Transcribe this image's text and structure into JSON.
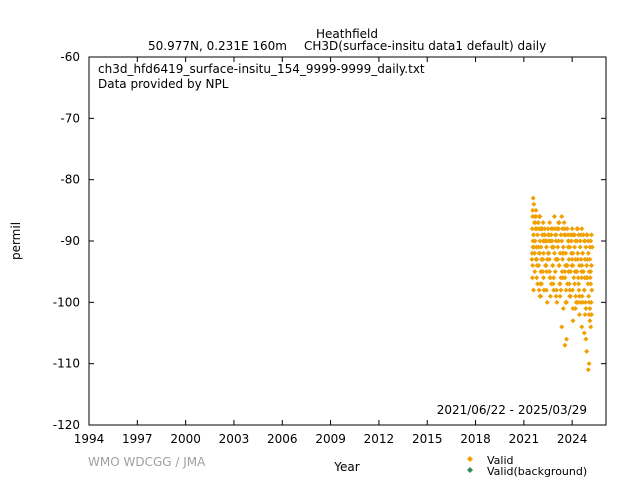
{
  "chart_data": {
    "type": "scatter",
    "title": "Heathfield",
    "subtitle_left": "50.977N, 0.231E 160m",
    "subtitle_right": "CH3D(surface-insitu data1 default) daily",
    "file_label": "ch3d_hfd6419_surface-insitu_154_9999-9999_daily.txt",
    "provider_label": "Data provided by NPL",
    "date_range": "2021/06/22 - 2025/03/29",
    "credit": "WMO WDCGG / JMA",
    "xlabel": "Year",
    "ylabel": "permil",
    "xlim": [
      1994,
      2026.1
    ],
    "ylim": [
      -120,
      -60
    ],
    "x_ticks": [
      "1994",
      "1997",
      "2000",
      "2003",
      "2006",
      "2009",
      "2012",
      "2015",
      "2018",
      "2021",
      "2024"
    ],
    "y_ticks": [
      "-60",
      "-70",
      "-80",
      "-90",
      "-100",
      "-110",
      "-120"
    ],
    "grid": false,
    "legend_position": "bottom-right",
    "series": [
      {
        "name": "Valid",
        "color": "#f0a000",
        "marker": "diamond",
        "x": [
          2021.5,
          2021.52,
          2021.55,
          2021.57,
          2021.6,
          2021.62,
          2021.65,
          2021.67,
          2021.7,
          2021.72,
          2021.75,
          2021.78,
          2021.8,
          2021.85,
          2021.88,
          2021.92,
          2021.95,
          2022.0,
          2022.03,
          2022.06,
          2022.1,
          2022.14,
          2022.18,
          2022.22,
          2022.26,
          2022.3,
          2022.35,
          2022.4,
          2022.45,
          2022.5,
          2022.55,
          2022.6,
          2022.65,
          2022.7,
          2022.75,
          2022.8,
          2022.85,
          2022.9,
          2022.95,
          2023.0,
          2023.05,
          2023.1,
          2023.15,
          2023.2,
          2023.25,
          2023.3,
          2023.35,
          2023.4,
          2023.45,
          2023.5,
          2023.55,
          2023.6,
          2023.65,
          2023.7,
          2023.75,
          2023.8,
          2023.85,
          2023.9,
          2023.95,
          2024.0,
          2024.05,
          2024.1,
          2024.15,
          2024.2,
          2024.25,
          2024.3,
          2024.35,
          2024.4,
          2024.45,
          2024.5,
          2024.55,
          2024.6,
          2024.65,
          2024.7,
          2024.75,
          2024.8,
          2024.85,
          2024.9,
          2024.95,
          2025.0,
          2025.05,
          2025.1,
          2025.15,
          2025.2,
          2025.24,
          2021.55,
          2021.62,
          2021.7,
          2021.8,
          2021.9,
          2022.0,
          2022.1,
          2022.2,
          2022.3,
          2022.4,
          2022.5,
          2022.6,
          2022.7,
          2022.8,
          2022.9,
          2023.0,
          2023.1,
          2023.2,
          2023.3,
          2023.4,
          2023.5,
          2023.6,
          2023.7,
          2023.8,
          2023.9,
          2024.0,
          2024.1,
          2024.2,
          2024.3,
          2024.4,
          2024.5,
          2024.6,
          2024.7,
          2024.8,
          2024.9,
          2025.0,
          2025.1,
          2025.2,
          2021.58,
          2021.75,
          2021.95,
          2022.15,
          2022.35,
          2022.55,
          2022.75,
          2022.95,
          2023.15,
          2023.35,
          2023.55,
          2023.75,
          2023.95,
          2024.15,
          2024.35,
          2024.55,
          2024.75,
          2024.95,
          2025.15,
          2021.53,
          2021.68,
          2021.82,
          2022.02,
          2022.22,
          2022.42,
          2022.62,
          2022.82,
          2023.02,
          2023.22,
          2023.42,
          2023.62,
          2023.82,
          2024.02,
          2024.22,
          2024.42,
          2024.62,
          2024.82,
          2025.02,
          2025.22,
          2021.6,
          2021.85,
          2022.05,
          2022.25,
          2022.45,
          2022.65,
          2022.85,
          2023.05,
          2023.25,
          2023.45,
          2023.65,
          2023.85,
          2024.05,
          2024.25,
          2024.45,
          2024.65,
          2024.85,
          2025.05,
          2025.18,
          2021.57,
          2021.66,
          2021.78,
          2021.98,
          2022.18,
          2022.38,
          2022.58,
          2022.78,
          2022.98,
          2023.18,
          2023.38,
          2023.58,
          2023.78,
          2023.98,
          2024.18,
          2024.38,
          2024.58,
          2024.78,
          2024.98,
          2025.12,
          2021.7,
          2021.95,
          2022.25,
          2022.55,
          2022.85,
          2023.15,
          2023.45,
          2023.75,
          2024.05,
          2024.35,
          2024.65,
          2024.95,
          2025.2,
          2021.55,
          2021.8,
          2022.1,
          2022.4,
          2022.7,
          2023.0,
          2023.3,
          2023.6,
          2023.9,
          2024.2,
          2024.5,
          2024.8,
          2025.1,
          2021.6,
          2021.9,
          2022.2,
          2022.5,
          2022.8,
          2023.1,
          2023.4,
          2023.7,
          2024.0,
          2024.3,
          2024.6,
          2024.9,
          2025.15,
          2021.52,
          2021.75,
          2022.05,
          2022.35,
          2022.65,
          2022.95,
          2023.25,
          2023.55,
          2023.85,
          2024.15,
          2024.45,
          2024.75,
          2025.05,
          2021.95,
          2022.0,
          2023.35,
          2023.55,
          2023.65,
          2024.05,
          2024.35,
          2024.6,
          2024.75,
          2024.85,
          2024.9,
          2025.0,
          2025.05,
          2025.1,
          2025.15,
          2025.2
        ],
        "y": [
          -93,
          -88,
          -86,
          -90,
          -89,
          -91,
          -87,
          -92,
          -90,
          -88,
          -86,
          -91,
          -93,
          -89,
          -87,
          -94,
          -92,
          -90,
          -88,
          -91,
          -93,
          -89,
          -95,
          -92,
          -90,
          -88,
          -94,
          -91,
          -93,
          -89,
          -92,
          -95,
          -90,
          -88,
          -91,
          -94,
          -96,
          -92,
          -89,
          -90,
          -93,
          -91,
          -88,
          -94,
          -92,
          -96,
          -90,
          -93,
          -91,
          -89,
          -95,
          -92,
          -94,
          -97,
          -90,
          -93,
          -91,
          -95,
          -92,
          -89,
          -94,
          -96,
          -91,
          -93,
          -95,
          -90,
          -92,
          -97,
          -94,
          -91,
          -93,
          -96,
          -92,
          -95,
          -98,
          -93,
          -91,
          -94,
          -96,
          -92,
          -95,
          -93,
          -97,
          -94,
          -91,
          -85,
          -84,
          -86,
          -88,
          -87,
          -86,
          -88,
          -87,
          -89,
          -90,
          -88,
          -87,
          -89,
          -88,
          -86,
          -89,
          -88,
          -87,
          -89,
          -88,
          -87,
          -89,
          -88,
          -90,
          -89,
          -88,
          -89,
          -90,
          -88,
          -89,
          -90,
          -88,
          -89,
          -90,
          -89,
          -90,
          -91,
          -89,
          -83,
          -85,
          -86,
          -88,
          -90,
          -89,
          -90,
          -88,
          -87,
          -86,
          -88,
          -89,
          -90,
          -89,
          -88,
          -89,
          -90,
          -89,
          -90,
          -96,
          -95,
          -94,
          -97,
          -96,
          -95,
          -96,
          -97,
          -98,
          -97,
          -96,
          -98,
          -97,
          -98,
          -99,
          -98,
          -99,
          -100,
          -99,
          -98,
          -98,
          -97,
          -99,
          -98,
          -100,
          -99,
          -98,
          -100,
          -99,
          -101,
          -100,
          -99,
          -101,
          -100,
          -102,
          -100,
          -101,
          -102,
          -100,
          -91,
          -92,
          -93,
          -92,
          -93,
          -94,
          -93,
          -94,
          -93,
          -94,
          -95,
          -94,
          -95,
          -94,
          -95,
          -96,
          -95,
          -96,
          -97,
          -96,
          -87,
          -88,
          -89,
          -90,
          -91,
          -90,
          -92,
          -91,
          -92,
          -93,
          -92,
          -93,
          -94,
          -94,
          -96,
          -97,
          -98,
          -97,
          -99,
          -98,
          -100,
          -99,
          -101,
          -100,
          -102,
          -101,
          -89,
          -91,
          -90,
          -92,
          -91,
          -93,
          -92,
          -94,
          -93,
          -95,
          -94,
          -96,
          -95,
          -92,
          -93,
          -95,
          -94,
          -96,
          -95,
          -97,
          -96,
          -98,
          -97,
          -99,
          -98,
          -100,
          -98,
          -99,
          -104,
          -107,
          -106,
          -103,
          -100,
          -104,
          -105,
          -106,
          -108,
          -111,
          -110,
          -103,
          -104,
          -102
        ]
      },
      {
        "name": "Valid(background)",
        "color": "#2e8b57",
        "marker": "diamond",
        "x": [],
        "y": []
      }
    ]
  }
}
